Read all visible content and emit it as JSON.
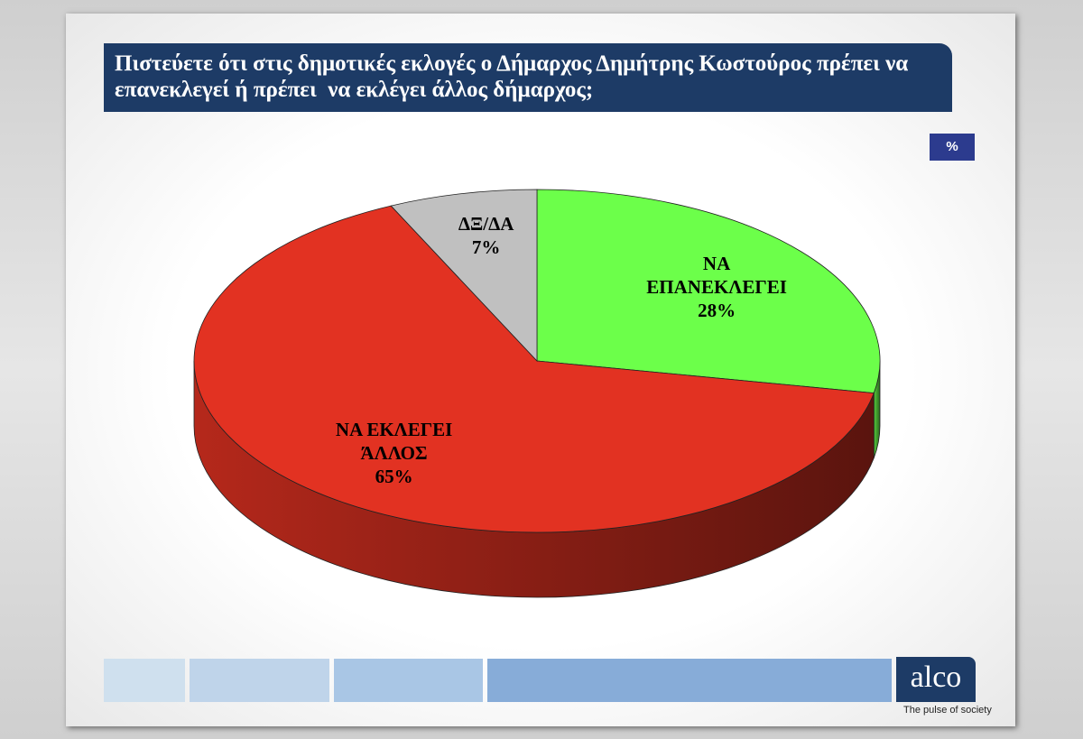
{
  "chart_data": {
    "type": "pie",
    "title": "Πιστεύετε ότι στις δημοτικές εκλογές ο Δήμαρχος Δημήτρης Κωστούρος πρέπει να επανεκλεγεί ή πρέπει  να εκλέγει άλλος δήμαρχος;",
    "unit": "%",
    "categories": [
      "ΝΑ ΕΠΑΝΕΚΛΕΓΕΙ",
      "ΝΑ ΕΚΛΕΓΕΙ ΆΛΛΟΣ",
      "ΔΞ/ΔΑ"
    ],
    "values": [
      28,
      65,
      7
    ],
    "value_labels": [
      "28%",
      "65%",
      "7%"
    ],
    "colors": [
      "#6cff4a",
      "#e23222",
      "#c0c0c0"
    ]
  },
  "logo": {
    "name": "alco",
    "tagline": "The pulse of society"
  }
}
